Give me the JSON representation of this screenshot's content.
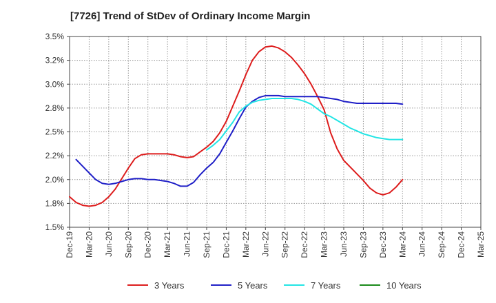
{
  "chart_data": {
    "type": "line",
    "title": "[7726]  Trend of StDev of Ordinary Income Margin",
    "xlabel": "",
    "ylabel": "",
    "x_ticks": [
      "Dec-19",
      "Mar-20",
      "Jun-20",
      "Sep-20",
      "Dec-20",
      "Mar-21",
      "Jun-21",
      "Sep-21",
      "Dec-21",
      "Mar-22",
      "Jun-22",
      "Sep-22",
      "Dec-22",
      "Mar-23",
      "Jun-23",
      "Sep-23",
      "Dec-23",
      "Mar-24",
      "Jun-24",
      "Sep-24",
      "Dec-24",
      "Mar-25"
    ],
    "y_ticks": [
      "1.5%",
      "1.8%",
      "2.0%",
      "2.2%",
      "2.5%",
      "2.8%",
      "3.0%",
      "3.2%",
      "3.5%"
    ],
    "ylim": [
      1.5,
      3.5
    ],
    "grid": true,
    "legend_position": "bottom",
    "series": [
      {
        "name": "3 Years",
        "color": "#dd1c1c",
        "points": [
          [
            0,
            1.82
          ],
          [
            1,
            1.76
          ],
          [
            2,
            1.73
          ],
          [
            3,
            1.72
          ],
          [
            4,
            1.73
          ],
          [
            5,
            1.76
          ],
          [
            6,
            1.82
          ],
          [
            7,
            1.9
          ],
          [
            8,
            2.01
          ],
          [
            9,
            2.12
          ],
          [
            10,
            2.22
          ],
          [
            11,
            2.26
          ],
          [
            12,
            2.27
          ],
          [
            13,
            2.27
          ],
          [
            14,
            2.27
          ],
          [
            15,
            2.27
          ],
          [
            16,
            2.26
          ],
          [
            17,
            2.24
          ],
          [
            18,
            2.23
          ],
          [
            19,
            2.24
          ],
          [
            20,
            2.29
          ],
          [
            21,
            2.34
          ],
          [
            22,
            2.4
          ],
          [
            23,
            2.49
          ],
          [
            24,
            2.61
          ],
          [
            25,
            2.77
          ],
          [
            26,
            2.93
          ],
          [
            27,
            3.1
          ],
          [
            28,
            3.25
          ],
          [
            29,
            3.34
          ],
          [
            30,
            3.39
          ],
          [
            31,
            3.4
          ],
          [
            32,
            3.38
          ],
          [
            33,
            3.34
          ],
          [
            34,
            3.28
          ],
          [
            35,
            3.2
          ],
          [
            36,
            3.11
          ],
          [
            37,
            3.0
          ],
          [
            38,
            2.87
          ],
          [
            39,
            2.73
          ],
          [
            40,
            2.49
          ],
          [
            41,
            2.32
          ],
          [
            42,
            2.2
          ],
          [
            43,
            2.13
          ],
          [
            44,
            2.06
          ],
          [
            45,
            1.99
          ],
          [
            46,
            1.91
          ],
          [
            47,
            1.86
          ],
          [
            48,
            1.84
          ],
          [
            49,
            1.86
          ],
          [
            50,
            1.92
          ],
          [
            51,
            2.0
          ]
        ]
      },
      {
        "name": "5 Years",
        "color": "#1f1fc7",
        "points": [
          [
            1,
            2.21
          ],
          [
            2,
            2.14
          ],
          [
            3,
            2.07
          ],
          [
            4,
            2.0
          ],
          [
            5,
            1.96
          ],
          [
            6,
            1.95
          ],
          [
            7,
            1.96
          ],
          [
            8,
            1.98
          ],
          [
            9,
            2.0
          ],
          [
            10,
            2.01
          ],
          [
            11,
            2.01
          ],
          [
            12,
            2.0
          ],
          [
            13,
            2.0
          ],
          [
            14,
            1.99
          ],
          [
            15,
            1.98
          ],
          [
            16,
            1.96
          ],
          [
            17,
            1.93
          ],
          [
            18,
            1.93
          ],
          [
            19,
            1.97
          ],
          [
            20,
            2.05
          ],
          [
            21,
            2.12
          ],
          [
            22,
            2.18
          ],
          [
            23,
            2.27
          ],
          [
            24,
            2.39
          ],
          [
            25,
            2.51
          ],
          [
            26,
            2.64
          ],
          [
            27,
            2.76
          ],
          [
            28,
            2.82
          ],
          [
            29,
            2.86
          ],
          [
            30,
            2.88
          ],
          [
            31,
            2.88
          ],
          [
            32,
            2.88
          ],
          [
            33,
            2.87
          ],
          [
            34,
            2.87
          ],
          [
            35,
            2.87
          ],
          [
            36,
            2.87
          ],
          [
            37,
            2.87
          ],
          [
            38,
            2.87
          ],
          [
            39,
            2.86
          ],
          [
            40,
            2.85
          ],
          [
            41,
            2.84
          ],
          [
            42,
            2.82
          ],
          [
            43,
            2.81
          ],
          [
            44,
            2.8
          ],
          [
            45,
            2.8
          ],
          [
            46,
            2.8
          ],
          [
            47,
            2.8
          ],
          [
            48,
            2.8
          ],
          [
            49,
            2.8
          ],
          [
            50,
            2.8
          ],
          [
            51,
            2.79
          ]
        ]
      },
      {
        "name": "7 Years",
        "color": "#22e5e5",
        "points": [
          [
            21,
            2.31
          ],
          [
            22,
            2.36
          ],
          [
            23,
            2.42
          ],
          [
            24,
            2.51
          ],
          [
            25,
            2.6
          ],
          [
            26,
            2.71
          ],
          [
            27,
            2.77
          ],
          [
            28,
            2.81
          ],
          [
            29,
            2.83
          ],
          [
            30,
            2.84
          ],
          [
            31,
            2.85
          ],
          [
            32,
            2.85
          ],
          [
            33,
            2.85
          ],
          [
            34,
            2.85
          ],
          [
            35,
            2.84
          ],
          [
            36,
            2.82
          ],
          [
            37,
            2.79
          ],
          [
            38,
            2.74
          ],
          [
            39,
            2.69
          ],
          [
            40,
            2.66
          ],
          [
            41,
            2.62
          ],
          [
            42,
            2.58
          ],
          [
            43,
            2.54
          ],
          [
            44,
            2.51
          ],
          [
            45,
            2.48
          ],
          [
            46,
            2.46
          ],
          [
            47,
            2.44
          ],
          [
            48,
            2.43
          ],
          [
            49,
            2.42
          ],
          [
            50,
            2.42
          ],
          [
            51,
            2.42
          ]
        ]
      },
      {
        "name": "10 Years",
        "color": "#1a8a1a",
        "points": []
      }
    ]
  }
}
